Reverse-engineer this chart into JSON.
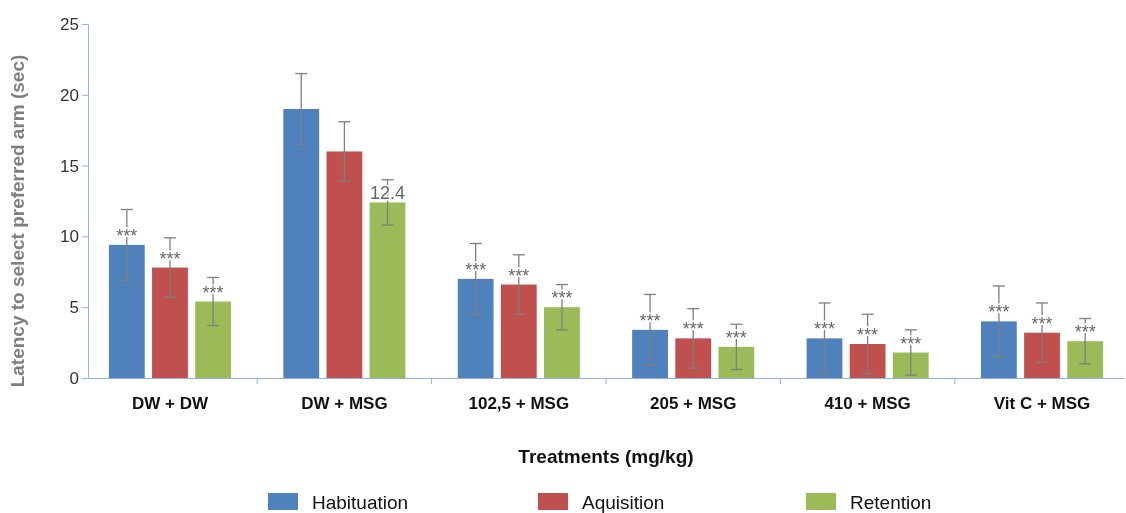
{
  "chart_data": {
    "type": "bar",
    "xlabel": "Treatments (mg/kg)",
    "ylabel": "Latency to select preferred arm  (sec)",
    "categories": [
      "DW + DW",
      "DW + MSG",
      "102,5 + MSG",
      "205 + MSG",
      "410 + MSG",
      "Vit C + MSG"
    ],
    "ylim": [
      0,
      25
    ],
    "yticks": [
      0,
      5,
      10,
      15,
      20,
      25
    ],
    "grid": false,
    "legend": "bottom",
    "series": [
      {
        "name": "Habituation",
        "color": "#4f81bd",
        "values": [
          9.4,
          19.0,
          7.0,
          3.4,
          2.8,
          4.0
        ],
        "errors": [
          2.5,
          2.5,
          2.5,
          2.5,
          2.5,
          2.5
        ],
        "value_labels": [
          "***",
          null,
          "***",
          "***",
          "***",
          "***"
        ]
      },
      {
        "name": "Aquisition",
        "color": "#c0504d",
        "values": [
          7.8,
          16.0,
          6.6,
          2.8,
          2.4,
          3.2
        ],
        "errors": [
          2.1,
          2.1,
          2.1,
          2.1,
          2.1,
          2.1
        ],
        "value_labels": [
          "***",
          null,
          "***",
          "***",
          "***",
          "***"
        ]
      },
      {
        "name": "Retention",
        "color": "#9bbb59",
        "values": [
          5.4,
          12.4,
          5.0,
          2.2,
          1.8,
          2.6
        ],
        "errors": [
          1.7,
          1.6,
          1.6,
          1.6,
          1.6,
          1.6
        ],
        "value_labels": [
          "***",
          "12.4",
          "***",
          "***",
          "***",
          "***"
        ]
      }
    ]
  }
}
